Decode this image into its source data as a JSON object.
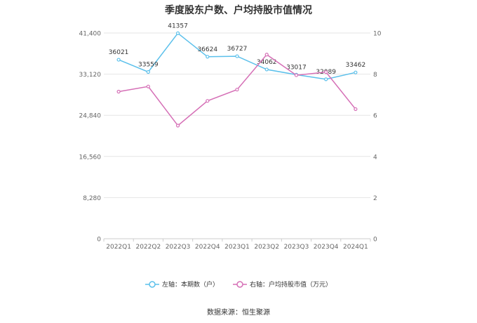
{
  "title": "季度股东户数、户均持股市值情况",
  "source": "数据来源：恒生聚源",
  "colors": {
    "left_series": "#5bc0eb",
    "right_series": "#d56fb6",
    "grid": "#e6e6e6",
    "axis_text": "#666666"
  },
  "chart_data": {
    "type": "line",
    "categories": [
      "2022Q1",
      "2022Q2",
      "2022Q3",
      "2022Q4",
      "2023Q1",
      "2023Q2",
      "2023Q3",
      "2023Q4",
      "2024Q1"
    ],
    "y_left": {
      "ticks": [
        "0",
        "8,280",
        "16,560",
        "24,840",
        "33,120",
        "41,400"
      ],
      "ylim": [
        0,
        41400
      ]
    },
    "y_right": {
      "ticks": [
        "0",
        "2",
        "4",
        "6",
        "8",
        "10"
      ],
      "ylim": [
        0,
        10
      ]
    },
    "grid": true,
    "legend_position": "bottom",
    "series": [
      {
        "name": "左轴：本期数（户）",
        "axis": "left",
        "values": [
          36021,
          33559,
          41357,
          36624,
          36727,
          34062,
          33017,
          32089,
          33462
        ],
        "labels": [
          "36021",
          "33559",
          "41357",
          "36624",
          "36727",
          "34062",
          "33017",
          "32089",
          "33462"
        ]
      },
      {
        "name": "右轴：户均持股市值（万元）",
        "axis": "right",
        "values": [
          7.15,
          7.4,
          5.5,
          6.7,
          7.25,
          8.95,
          7.95,
          8.1,
          6.3
        ]
      }
    ]
  }
}
